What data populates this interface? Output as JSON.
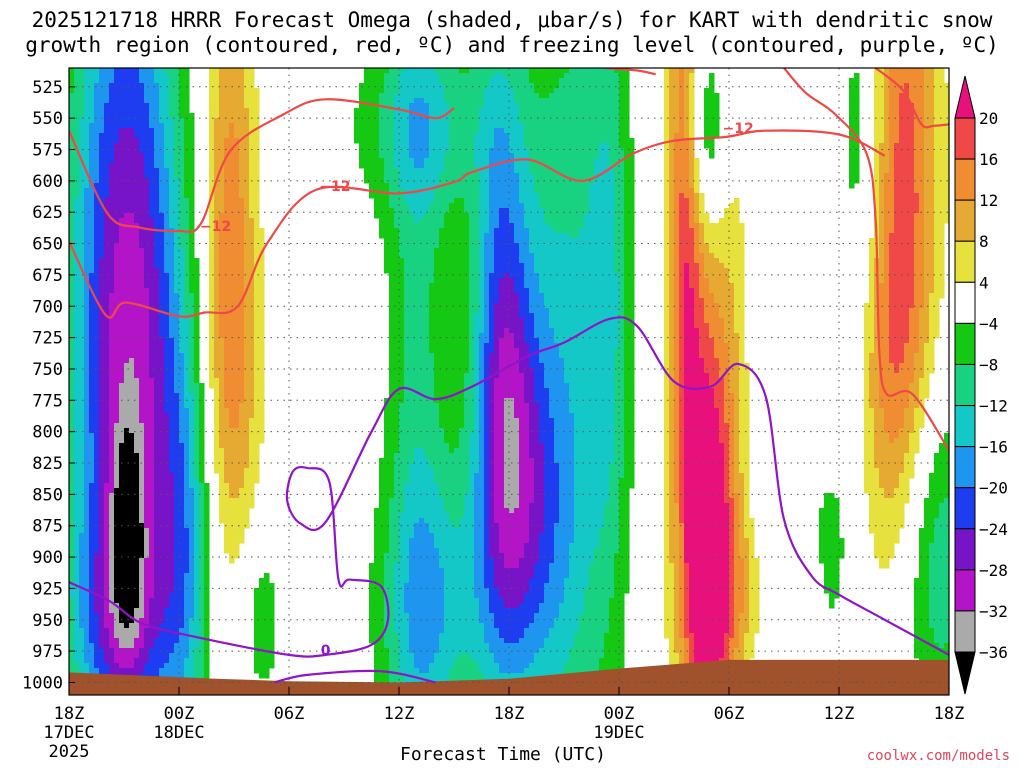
{
  "chart_data": {
    "type": "heatmap",
    "title": "2025121718 HRRR Forecast Omega (shaded, μbar/s) for KART with dendritic snow growth region (contoured, red, ºC) and freezing level (contoured, purple, ºC)",
    "xlabel": "Forecast Time (UTC)",
    "ylabel": "",
    "x_ticks": [
      {
        "label": "18Z",
        "sub1": "17DEC",
        "sub2": "2025",
        "hour": 0
      },
      {
        "label": "00Z",
        "sub1": "18DEC",
        "sub2": "",
        "hour": 6
      },
      {
        "label": "06Z",
        "sub1": "",
        "sub2": "",
        "hour": 12
      },
      {
        "label": "12Z",
        "sub1": "",
        "sub2": "",
        "hour": 18
      },
      {
        "label": "18Z",
        "sub1": "",
        "sub2": "",
        "hour": 24
      },
      {
        "label": "00Z",
        "sub1": "19DEC",
        "sub2": "",
        "hour": 30
      },
      {
        "label": "06Z",
        "sub1": "",
        "sub2": "",
        "hour": 36
      },
      {
        "label": "12Z",
        "sub1": "",
        "sub2": "",
        "hour": 42
      },
      {
        "label": "18Z",
        "sub1": "",
        "sub2": "",
        "hour": 48
      }
    ],
    "x_range_hours": [
      0,
      48
    ],
    "y_levels_hpa": [
      "525",
      "550",
      "575",
      "600",
      "625",
      "650",
      "675",
      "700",
      "725",
      "750",
      "775",
      "800",
      "825",
      "850",
      "875",
      "900",
      "925",
      "950",
      "975",
      "1000"
    ],
    "y_range_hpa": [
      510,
      1010
    ],
    "grid": true,
    "colorbar": {
      "labels": [
        "20",
        "16",
        "12",
        "8",
        "4",
        "−4",
        "−8",
        "−12",
        "−16",
        "−20",
        "−24",
        "−28",
        "−32",
        "−36"
      ],
      "bins": [
        {
          "min": 20,
          "max": 24,
          "color": "#e8107a"
        },
        {
          "min": 16,
          "max": 20,
          "color": "#f04848"
        },
        {
          "min": 12,
          "max": 16,
          "color": "#f08c32"
        },
        {
          "min": 8,
          "max": 12,
          "color": "#e6aa32"
        },
        {
          "min": 4,
          "max": 8,
          "color": "#e6e13c"
        },
        {
          "min": -4,
          "max": 4,
          "color": "#ffffff"
        },
        {
          "min": -8,
          "max": -4,
          "color": "#14c814"
        },
        {
          "min": -12,
          "max": -8,
          "color": "#18d282"
        },
        {
          "min": -16,
          "max": -12,
          "color": "#14c8c8"
        },
        {
          "min": -20,
          "max": -16,
          "color": "#1e96f0"
        },
        {
          "min": -24,
          "max": -20,
          "color": "#1e3cf0"
        },
        {
          "min": -28,
          "max": -24,
          "color": "#7814c8"
        },
        {
          "min": -32,
          "max": -28,
          "color": "#b414c8"
        },
        {
          "min": -36,
          "max": -32,
          "color": "#aaaaaa"
        },
        {
          "min": -40,
          "max": -36,
          "color": "#000000"
        }
      ]
    },
    "shaded_blobs": [
      {
        "t": 3.0,
        "p": 720,
        "st": 2.2,
        "sp": 260,
        "v": -26,
        "g": 2.2
      },
      {
        "t": 3.2,
        "p": 880,
        "st": 0.6,
        "sp": 60,
        "v": -14,
        "g": 2
      },
      {
        "t": 2.6,
        "p": 950,
        "st": 2.0,
        "sp": 60,
        "v": -10,
        "g": 2
      },
      {
        "t": 6.3,
        "p": 900,
        "st": 1.0,
        "sp": 120,
        "v": -12,
        "g": 2
      },
      {
        "t": 4.2,
        "p": 780,
        "st": 1.8,
        "sp": 180,
        "v": -6,
        "g": 2
      },
      {
        "t": 8.8,
        "p": 620,
        "st": 1.0,
        "sp": 160,
        "v": 13,
        "g": 2
      },
      {
        "t": 9.0,
        "p": 780,
        "st": 1.2,
        "sp": 100,
        "v": 6,
        "g": 2
      },
      {
        "t": 10.5,
        "p": 950,
        "st": 0.8,
        "sp": 50,
        "v": -7,
        "g": 2
      },
      {
        "t": 19.0,
        "p": 760,
        "st": 1.2,
        "sp": 320,
        "v": -9,
        "g": 2
      },
      {
        "t": 20.0,
        "p": 940,
        "st": 2.2,
        "sp": 80,
        "v": -12,
        "g": 2
      },
      {
        "t": 24.0,
        "p": 800,
        "st": 1.4,
        "sp": 140,
        "v": -20,
        "g": 2
      },
      {
        "t": 23.5,
        "p": 680,
        "st": 1.0,
        "sp": 200,
        "v": -9,
        "g": 2
      },
      {
        "t": 25.5,
        "p": 880,
        "st": 1.6,
        "sp": 100,
        "v": -9,
        "g": 2
      },
      {
        "t": 27.5,
        "p": 760,
        "st": 1.8,
        "sp": 260,
        "v": -12,
        "g": 2
      },
      {
        "t": 29.5,
        "p": 680,
        "st": 0.8,
        "sp": 180,
        "v": -8,
        "g": 2
      },
      {
        "t": 19.5,
        "p": 555,
        "st": 2.8,
        "sp": 55,
        "v": -10,
        "g": 2
      },
      {
        "t": 34.8,
        "p": 900,
        "st": 1.0,
        "sp": 120,
        "v": 22,
        "g": 2
      },
      {
        "t": 35.8,
        "p": 760,
        "st": 1.8,
        "sp": 200,
        "v": 8,
        "g": 2
      },
      {
        "t": 33.6,
        "p": 600,
        "st": 0.7,
        "sp": 160,
        "v": 18,
        "g": 2
      },
      {
        "t": 34.6,
        "p": 560,
        "st": 0.9,
        "sp": 60,
        "v": -14,
        "g": 2
      },
      {
        "t": 37.0,
        "p": 930,
        "st": 2.6,
        "sp": 45,
        "v": 6,
        "g": 2
      },
      {
        "t": 38.0,
        "p": 800,
        "st": 0.9,
        "sp": 200,
        "v": -7,
        "g": 2
      },
      {
        "t": 41.5,
        "p": 890,
        "st": 1.0,
        "sp": 80,
        "v": -8,
        "g": 2
      },
      {
        "t": 41.5,
        "p": 620,
        "st": 0.9,
        "sp": 180,
        "v": 6,
        "g": 2
      },
      {
        "t": 43.0,
        "p": 580,
        "st": 1.2,
        "sp": 120,
        "v": -10,
        "g": 2
      },
      {
        "t": 45.5,
        "p": 600,
        "st": 1.4,
        "sp": 200,
        "v": 18,
        "g": 2
      },
      {
        "t": 44.5,
        "p": 760,
        "st": 1.2,
        "sp": 100,
        "v": 6,
        "g": 2
      },
      {
        "t": 47.3,
        "p": 900,
        "st": 1.5,
        "sp": 100,
        "v": -12,
        "g": 2
      }
    ],
    "contour_lines": [
      {
        "name": "-12",
        "color": "#f04848",
        "label_at": [
          8.0,
          636
        ],
        "points": [
          [
            0.0,
            560
          ],
          [
            2.1,
            626
          ],
          [
            3.8,
            637
          ],
          [
            6.0,
            640
          ],
          [
            7.2,
            634
          ],
          [
            8.8,
            576
          ],
          [
            11.7,
            547
          ],
          [
            14.0,
            535
          ],
          [
            18.0,
            543
          ],
          [
            20.0,
            550
          ],
          [
            21.0,
            542
          ]
        ]
      },
      {
        "name": "-12",
        "color": "#f04848",
        "label_at": [
          14.5,
          604
        ],
        "points": [
          [
            0.0,
            648
          ],
          [
            2.0,
            707
          ],
          [
            3.1,
            697
          ],
          [
            6.0,
            708
          ],
          [
            7.4,
            705
          ],
          [
            9.2,
            700
          ],
          [
            10.8,
            650
          ],
          [
            13.5,
            607
          ],
          [
            18.0,
            610
          ],
          [
            21.0,
            601
          ],
          [
            22.0,
            593
          ],
          [
            25.0,
            583
          ],
          [
            28.0,
            600
          ],
          [
            30.8,
            578
          ],
          [
            33.0,
            568
          ],
          [
            35.8,
            565
          ],
          [
            38.0,
            560
          ],
          [
            42.0,
            563
          ],
          [
            44.5,
            580
          ]
        ]
      },
      {
        "name": "-12",
        "color": "#f04848",
        "label_at": [
          36.5,
          558
        ],
        "points": [
          [
            29.2,
            510
          ],
          [
            31.0,
            512
          ],
          [
            32.0,
            515
          ]
        ]
      },
      {
        "name": "-12",
        "color": "#f04848",
        "label_at": [
          0,
          0
        ],
        "points": [
          [
            39.0,
            510
          ],
          [
            40.2,
            530
          ],
          [
            41.8,
            547
          ],
          [
            43.5,
            578
          ],
          [
            44.0,
            632
          ],
          [
            44.2,
            736
          ],
          [
            44.6,
            770
          ],
          [
            46.0,
            770
          ],
          [
            48.0,
            815
          ]
        ]
      },
      {
        "name": "-12",
        "color": "#f04848",
        "label_at": [
          0,
          0
        ],
        "points": [
          [
            44.0,
            510
          ],
          [
            45.5,
            528
          ],
          [
            46.5,
            555
          ],
          [
            47.2,
            556
          ],
          [
            48.0,
            555
          ]
        ]
      },
      {
        "name": "0",
        "color": "#9014c8",
        "label_at": [
          14.0,
          974
        ],
        "points": [
          [
            0.0,
            920
          ],
          [
            2.2,
            935
          ],
          [
            4.0,
            953
          ],
          [
            7.0,
            964
          ],
          [
            12.0,
            978
          ],
          [
            14.0,
            978
          ],
          [
            16.5,
            970
          ],
          [
            17.4,
            950
          ],
          [
            17.0,
            923
          ],
          [
            15.3,
            918
          ],
          [
            14.7,
            918
          ],
          [
            14.2,
            840
          ],
          [
            13.0,
            829
          ],
          [
            12.2,
            832
          ],
          [
            11.9,
            855
          ],
          [
            12.6,
            873
          ],
          [
            14.0,
            872
          ],
          [
            16.5,
            800
          ],
          [
            18.0,
            766
          ],
          [
            20.0,
            774
          ],
          [
            22.0,
            764
          ],
          [
            25.0,
            740
          ],
          [
            27.0,
            729
          ],
          [
            29.5,
            710
          ],
          [
            31.0,
            716
          ],
          [
            33.0,
            760
          ],
          [
            35.0,
            764
          ],
          [
            36.5,
            746
          ],
          [
            38.0,
            772
          ],
          [
            39.0,
            870
          ],
          [
            40.5,
            915
          ],
          [
            42.0,
            930
          ],
          [
            44.5,
            950
          ],
          [
            48.0,
            978
          ]
        ]
      },
      {
        "name": "0",
        "color": "#9014c8",
        "label_at": [
          0,
          0
        ],
        "points": [
          [
            11.2,
            1000
          ],
          [
            13.0,
            994
          ],
          [
            17.0,
            991
          ],
          [
            20.0,
            1000
          ]
        ]
      }
    ],
    "ground_profile": [
      [
        0,
        992
      ],
      [
        8,
        997
      ],
      [
        12,
        999
      ],
      [
        18,
        1000
      ],
      [
        24,
        997
      ],
      [
        30,
        989
      ],
      [
        36,
        982
      ],
      [
        48,
        982
      ]
    ],
    "dendritic_label": "−12"
  },
  "credit": "coolwx.com/models",
  "colors": {
    "ground": "#a0522d",
    "grid": "#555555",
    "red_contour": "#f04848",
    "purple_contour": "#9014c8",
    "credit": "#e0455a"
  }
}
